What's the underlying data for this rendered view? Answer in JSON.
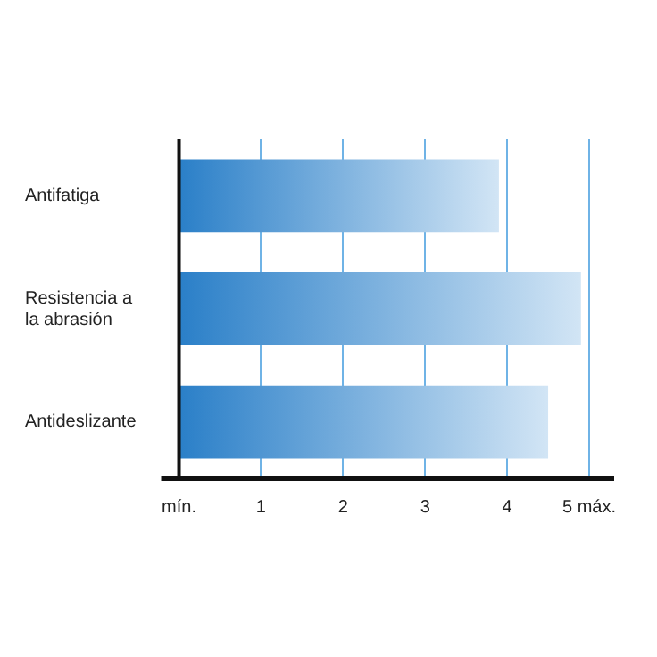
{
  "chart_data": {
    "type": "bar",
    "orientation": "horizontal",
    "categories": [
      "Antifatiga",
      "Resistencia a la abrasión",
      "Antideslizante"
    ],
    "values": [
      3.9,
      4.9,
      4.5
    ],
    "color": "#2a7fc8",
    "xlim": [
      0,
      5
    ],
    "xticks": [
      {
        "value": 0,
        "label": "mín."
      },
      1,
      2,
      3,
      4,
      {
        "value": 5,
        "label": "5 máx."
      }
    ],
    "grid": "x",
    "legend": false
  }
}
